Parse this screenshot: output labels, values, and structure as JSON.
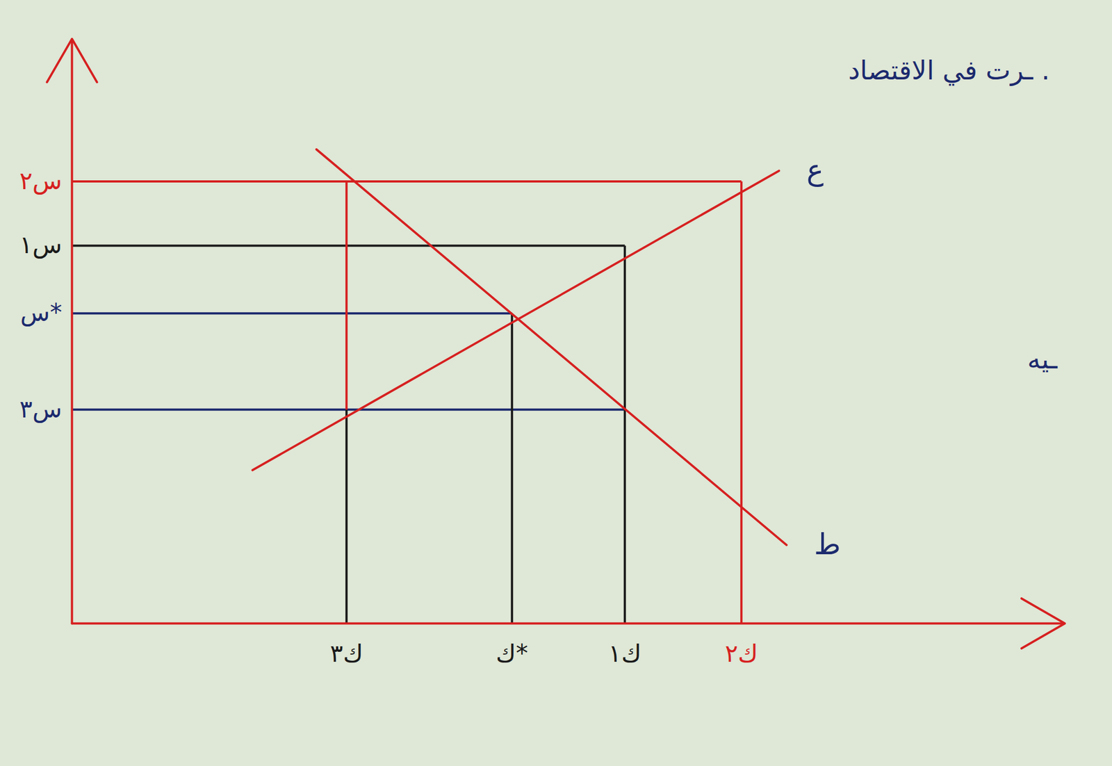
{
  "chart_data": {
    "type": "line",
    "xlim": [
      0,
      13.2
    ],
    "ylim": [
      0,
      8.2
    ],
    "tick_labels": false,
    "grid": false,
    "axis_color": "#d62020",
    "yticks": [
      {
        "value": 6.2,
        "label": "س٢",
        "color": "#d62020",
        "to_x": 8.9
      },
      {
        "value": 5.3,
        "label": "س١",
        "color": "#1a1a1a",
        "to_x": 7.35
      },
      {
        "value": 4.35,
        "label": "س*",
        "color": "#1c2a6e",
        "to_x": 5.85
      },
      {
        "value": 3.0,
        "label": "س٣",
        "color": "#1c2a6e",
        "to_x": 7.35
      }
    ],
    "xticks": [
      {
        "value": 3.65,
        "label": "ك٣",
        "color": "#1a1a1a",
        "segments": [
          {
            "from": 0,
            "to": 3.0,
            "color": "#1a1a1a"
          },
          {
            "from": 3.0,
            "to": 6.2,
            "color": "#d62020"
          }
        ]
      },
      {
        "value": 5.85,
        "label": "ك*",
        "color": "#1a1a1a",
        "segments": [
          {
            "from": 0,
            "to": 4.35,
            "color": "#1a1a1a"
          }
        ]
      },
      {
        "value": 7.35,
        "label": "ك١",
        "color": "#1a1a1a",
        "segments": [
          {
            "from": 0,
            "to": 5.3,
            "color": "#1a1a1a"
          }
        ]
      },
      {
        "value": 8.9,
        "label": "ك٢",
        "color": "#d62020",
        "segments": [
          {
            "from": 0,
            "to": 6.2,
            "color": "#d62020"
          }
        ]
      }
    ],
    "series": [
      {
        "name": "ع",
        "color": "#d62020",
        "x": [
          2.4,
          9.4
        ],
        "values": [
          2.15,
          6.35
        ]
      },
      {
        "name": "ط",
        "color": "#d62020",
        "x": [
          3.25,
          9.5
        ],
        "values": [
          6.65,
          1.1
        ]
      }
    ],
    "annotations": [
      {
        "text": "ـرت في الاقتصاد .",
        "x": 13.0,
        "y": 7.75
      },
      {
        "text": "ـيه",
        "x": 13.1,
        "y": 3.7
      }
    ]
  }
}
